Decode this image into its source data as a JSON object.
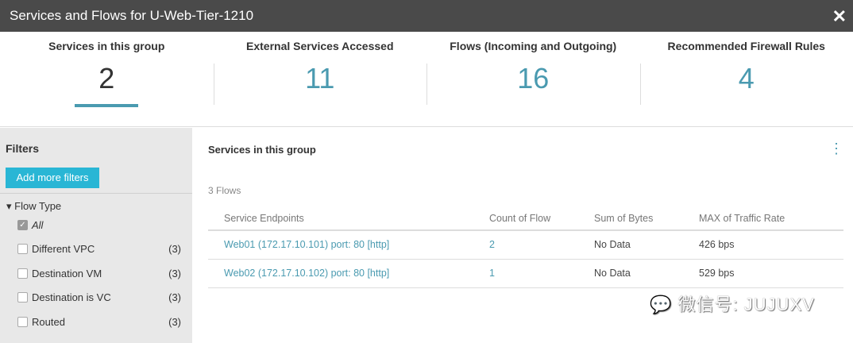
{
  "title": "Services and Flows for U-Web-Tier-1210",
  "stats": [
    {
      "label": "Services in this group",
      "value": "2"
    },
    {
      "label": "External Services Accessed",
      "value": "11"
    },
    {
      "label": "Flows (Incoming and Outgoing)",
      "value": "16"
    },
    {
      "label": "Recommended Firewall Rules",
      "value": "4"
    }
  ],
  "filters": {
    "title": "Filters",
    "add_label": "Add more filters",
    "group": "Flow Type",
    "items": [
      {
        "label": "All",
        "count": "",
        "checked": true
      },
      {
        "label": "Different VPC",
        "count": "(3)"
      },
      {
        "label": "Destination VM",
        "count": "(3)"
      },
      {
        "label": "Destination is VC",
        "count": "(3)"
      },
      {
        "label": "Routed",
        "count": "(3)"
      }
    ]
  },
  "main": {
    "title": "Services in this group",
    "flows": "3 Flows",
    "columns": [
      "Service Endpoints",
      "Count of Flow",
      "Sum of Bytes",
      "MAX of Traffic Rate"
    ],
    "rows": [
      [
        "Web01 (172.17.10.101) port: 80 [http]",
        "2",
        "No Data",
        "426 bps"
      ],
      [
        "Web02 (172.17.10.102) port: 80 [http]",
        "1",
        "No Data",
        "529 bps"
      ]
    ]
  },
  "watermark": "微信号: JUJUXV",
  "colors": {
    "accent": "#4a9ab0",
    "button": "#29b6d5",
    "titlebar": "#4a4a4a"
  }
}
